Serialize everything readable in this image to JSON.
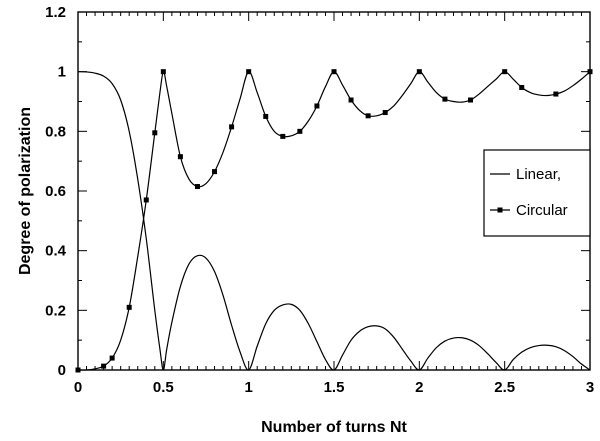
{
  "chart_data": {
    "type": "line",
    "xlabel": "Number of turns Nt",
    "ylabel": "Degree of polarization",
    "xlim": [
      0,
      3
    ],
    "ylim": [
      0,
      1.2
    ],
    "x_ticks": [
      0,
      0.5,
      1,
      1.5,
      2,
      2.5,
      3
    ],
    "y_ticks": [
      0,
      0.2,
      0.4,
      0.6,
      0.8,
      1,
      1.2
    ],
    "x_tick_labels": [
      "0",
      "0.5",
      "1",
      "1.5",
      "2",
      "2.5",
      "3"
    ],
    "y_tick_labels": [
      "0",
      "0.2",
      "0.4",
      "0.6",
      "0.8",
      "1",
      "1.2"
    ],
    "grid": false,
    "legend_position": "right",
    "series": [
      {
        "name": "Linear,",
        "marker": "none",
        "color": "#000000",
        "points": [
          [
            0,
            1.0
          ],
          [
            0.05,
            0.999
          ],
          [
            0.1,
            0.995
          ],
          [
            0.15,
            0.985
          ],
          [
            0.2,
            0.96
          ],
          [
            0.25,
            0.905
          ],
          [
            0.3,
            0.8
          ],
          [
            0.35,
            0.64
          ],
          [
            0.4,
            0.44
          ],
          [
            0.45,
            0.2
          ],
          [
            0.48,
            0.07
          ],
          [
            0.5,
            0.0
          ],
          [
            0.52,
            0.07
          ],
          [
            0.55,
            0.16
          ],
          [
            0.6,
            0.28
          ],
          [
            0.65,
            0.355
          ],
          [
            0.7,
            0.383
          ],
          [
            0.75,
            0.375
          ],
          [
            0.8,
            0.33
          ],
          [
            0.85,
            0.25
          ],
          [
            0.9,
            0.15
          ],
          [
            0.95,
            0.06
          ],
          [
            1.0,
            0.0
          ],
          [
            1.05,
            0.08
          ],
          [
            1.1,
            0.155
          ],
          [
            1.15,
            0.2
          ],
          [
            1.2,
            0.218
          ],
          [
            1.25,
            0.22
          ],
          [
            1.3,
            0.2
          ],
          [
            1.35,
            0.155
          ],
          [
            1.4,
            0.095
          ],
          [
            1.45,
            0.035
          ],
          [
            1.5,
            0.0
          ],
          [
            1.55,
            0.05
          ],
          [
            1.6,
            0.1
          ],
          [
            1.65,
            0.13
          ],
          [
            1.7,
            0.145
          ],
          [
            1.75,
            0.148
          ],
          [
            1.8,
            0.138
          ],
          [
            1.85,
            0.11
          ],
          [
            1.9,
            0.07
          ],
          [
            1.95,
            0.03
          ],
          [
            2.0,
            0.0
          ],
          [
            2.05,
            0.04
          ],
          [
            2.1,
            0.075
          ],
          [
            2.15,
            0.097
          ],
          [
            2.2,
            0.107
          ],
          [
            2.25,
            0.108
          ],
          [
            2.3,
            0.1
          ],
          [
            2.35,
            0.082
          ],
          [
            2.4,
            0.055
          ],
          [
            2.45,
            0.025
          ],
          [
            2.5,
            0.0
          ],
          [
            2.55,
            0.035
          ],
          [
            2.6,
            0.06
          ],
          [
            2.65,
            0.075
          ],
          [
            2.7,
            0.082
          ],
          [
            2.75,
            0.083
          ],
          [
            2.8,
            0.078
          ],
          [
            2.85,
            0.065
          ],
          [
            2.9,
            0.045
          ],
          [
            2.95,
            0.02
          ],
          [
            3.0,
            0.0
          ]
        ]
      },
      {
        "name": "Circular",
        "marker": "square",
        "color": "#000000",
        "points": [
          [
            0,
            0.0
          ],
          [
            0.05,
            0.0
          ],
          [
            0.1,
            0.004
          ],
          [
            0.15,
            0.013
          ],
          [
            0.2,
            0.04
          ],
          [
            0.25,
            0.1
          ],
          [
            0.3,
            0.21
          ],
          [
            0.35,
            0.38
          ],
          [
            0.4,
            0.57
          ],
          [
            0.45,
            0.795
          ],
          [
            0.48,
            0.93
          ],
          [
            0.5,
            1.0
          ],
          [
            0.52,
            0.95
          ],
          [
            0.55,
            0.86
          ],
          [
            0.6,
            0.715
          ],
          [
            0.65,
            0.64
          ],
          [
            0.7,
            0.615
          ],
          [
            0.75,
            0.625
          ],
          [
            0.8,
            0.665
          ],
          [
            0.85,
            0.73
          ],
          [
            0.9,
            0.815
          ],
          [
            0.95,
            0.91
          ],
          [
            1.0,
            1.0
          ],
          [
            1.05,
            0.93
          ],
          [
            1.1,
            0.85
          ],
          [
            1.15,
            0.8
          ],
          [
            1.2,
            0.783
          ],
          [
            1.25,
            0.785
          ],
          [
            1.3,
            0.8
          ],
          [
            1.35,
            0.835
          ],
          [
            1.4,
            0.885
          ],
          [
            1.45,
            0.95
          ],
          [
            1.5,
            1.0
          ],
          [
            1.55,
            0.955
          ],
          [
            1.6,
            0.905
          ],
          [
            1.65,
            0.87
          ],
          [
            1.7,
            0.852
          ],
          [
            1.75,
            0.852
          ],
          [
            1.8,
            0.863
          ],
          [
            1.85,
            0.885
          ],
          [
            1.9,
            0.92
          ],
          [
            1.95,
            0.96
          ],
          [
            2.0,
            1.0
          ],
          [
            2.05,
            0.965
          ],
          [
            2.1,
            0.93
          ],
          [
            2.15,
            0.908
          ],
          [
            2.2,
            0.9
          ],
          [
            2.25,
            0.898
          ],
          [
            2.3,
            0.905
          ],
          [
            2.35,
            0.925
          ],
          [
            2.4,
            0.95
          ],
          [
            2.45,
            0.975
          ],
          [
            2.5,
            1.0
          ],
          [
            2.55,
            0.975
          ],
          [
            2.6,
            0.947
          ],
          [
            2.65,
            0.93
          ],
          [
            2.7,
            0.922
          ],
          [
            2.75,
            0.92
          ],
          [
            2.8,
            0.925
          ],
          [
            2.85,
            0.935
          ],
          [
            2.9,
            0.953
          ],
          [
            2.95,
            0.975
          ],
          [
            3.0,
            1.0
          ]
        ],
        "marker_x": [
          0,
          0.15,
          0.2,
          0.3,
          0.4,
          0.45,
          0.5,
          0.6,
          0.7,
          0.8,
          0.9,
          1.0,
          1.1,
          1.2,
          1.3,
          1.4,
          1.5,
          1.6,
          1.7,
          1.8,
          2.0,
          2.15,
          2.3,
          2.5,
          2.6,
          2.8,
          3.0
        ]
      }
    ]
  }
}
